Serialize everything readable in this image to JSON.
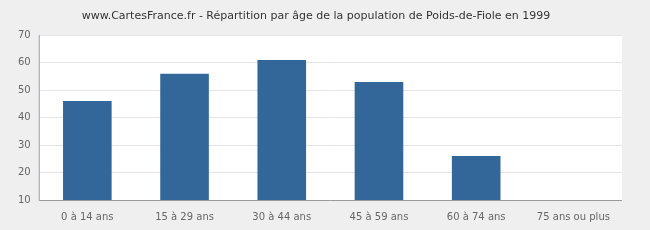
{
  "chart_data": {
    "type": "bar",
    "title": "www.CartesFrance.fr - Répartition par âge de la population de Poids-de-Fiole en 1999",
    "categories": [
      "0 à 14 ans",
      "15 à 29 ans",
      "30 à 44 ans",
      "45 à 59 ans",
      "60 à 74 ans",
      "75 ans ou plus"
    ],
    "values": [
      46,
      56,
      61,
      53,
      26,
      10
    ],
    "color": "#336699",
    "ylim": [
      10,
      70
    ],
    "yticks": [
      10,
      20,
      30,
      40,
      50,
      60,
      70
    ],
    "grid": true
  }
}
